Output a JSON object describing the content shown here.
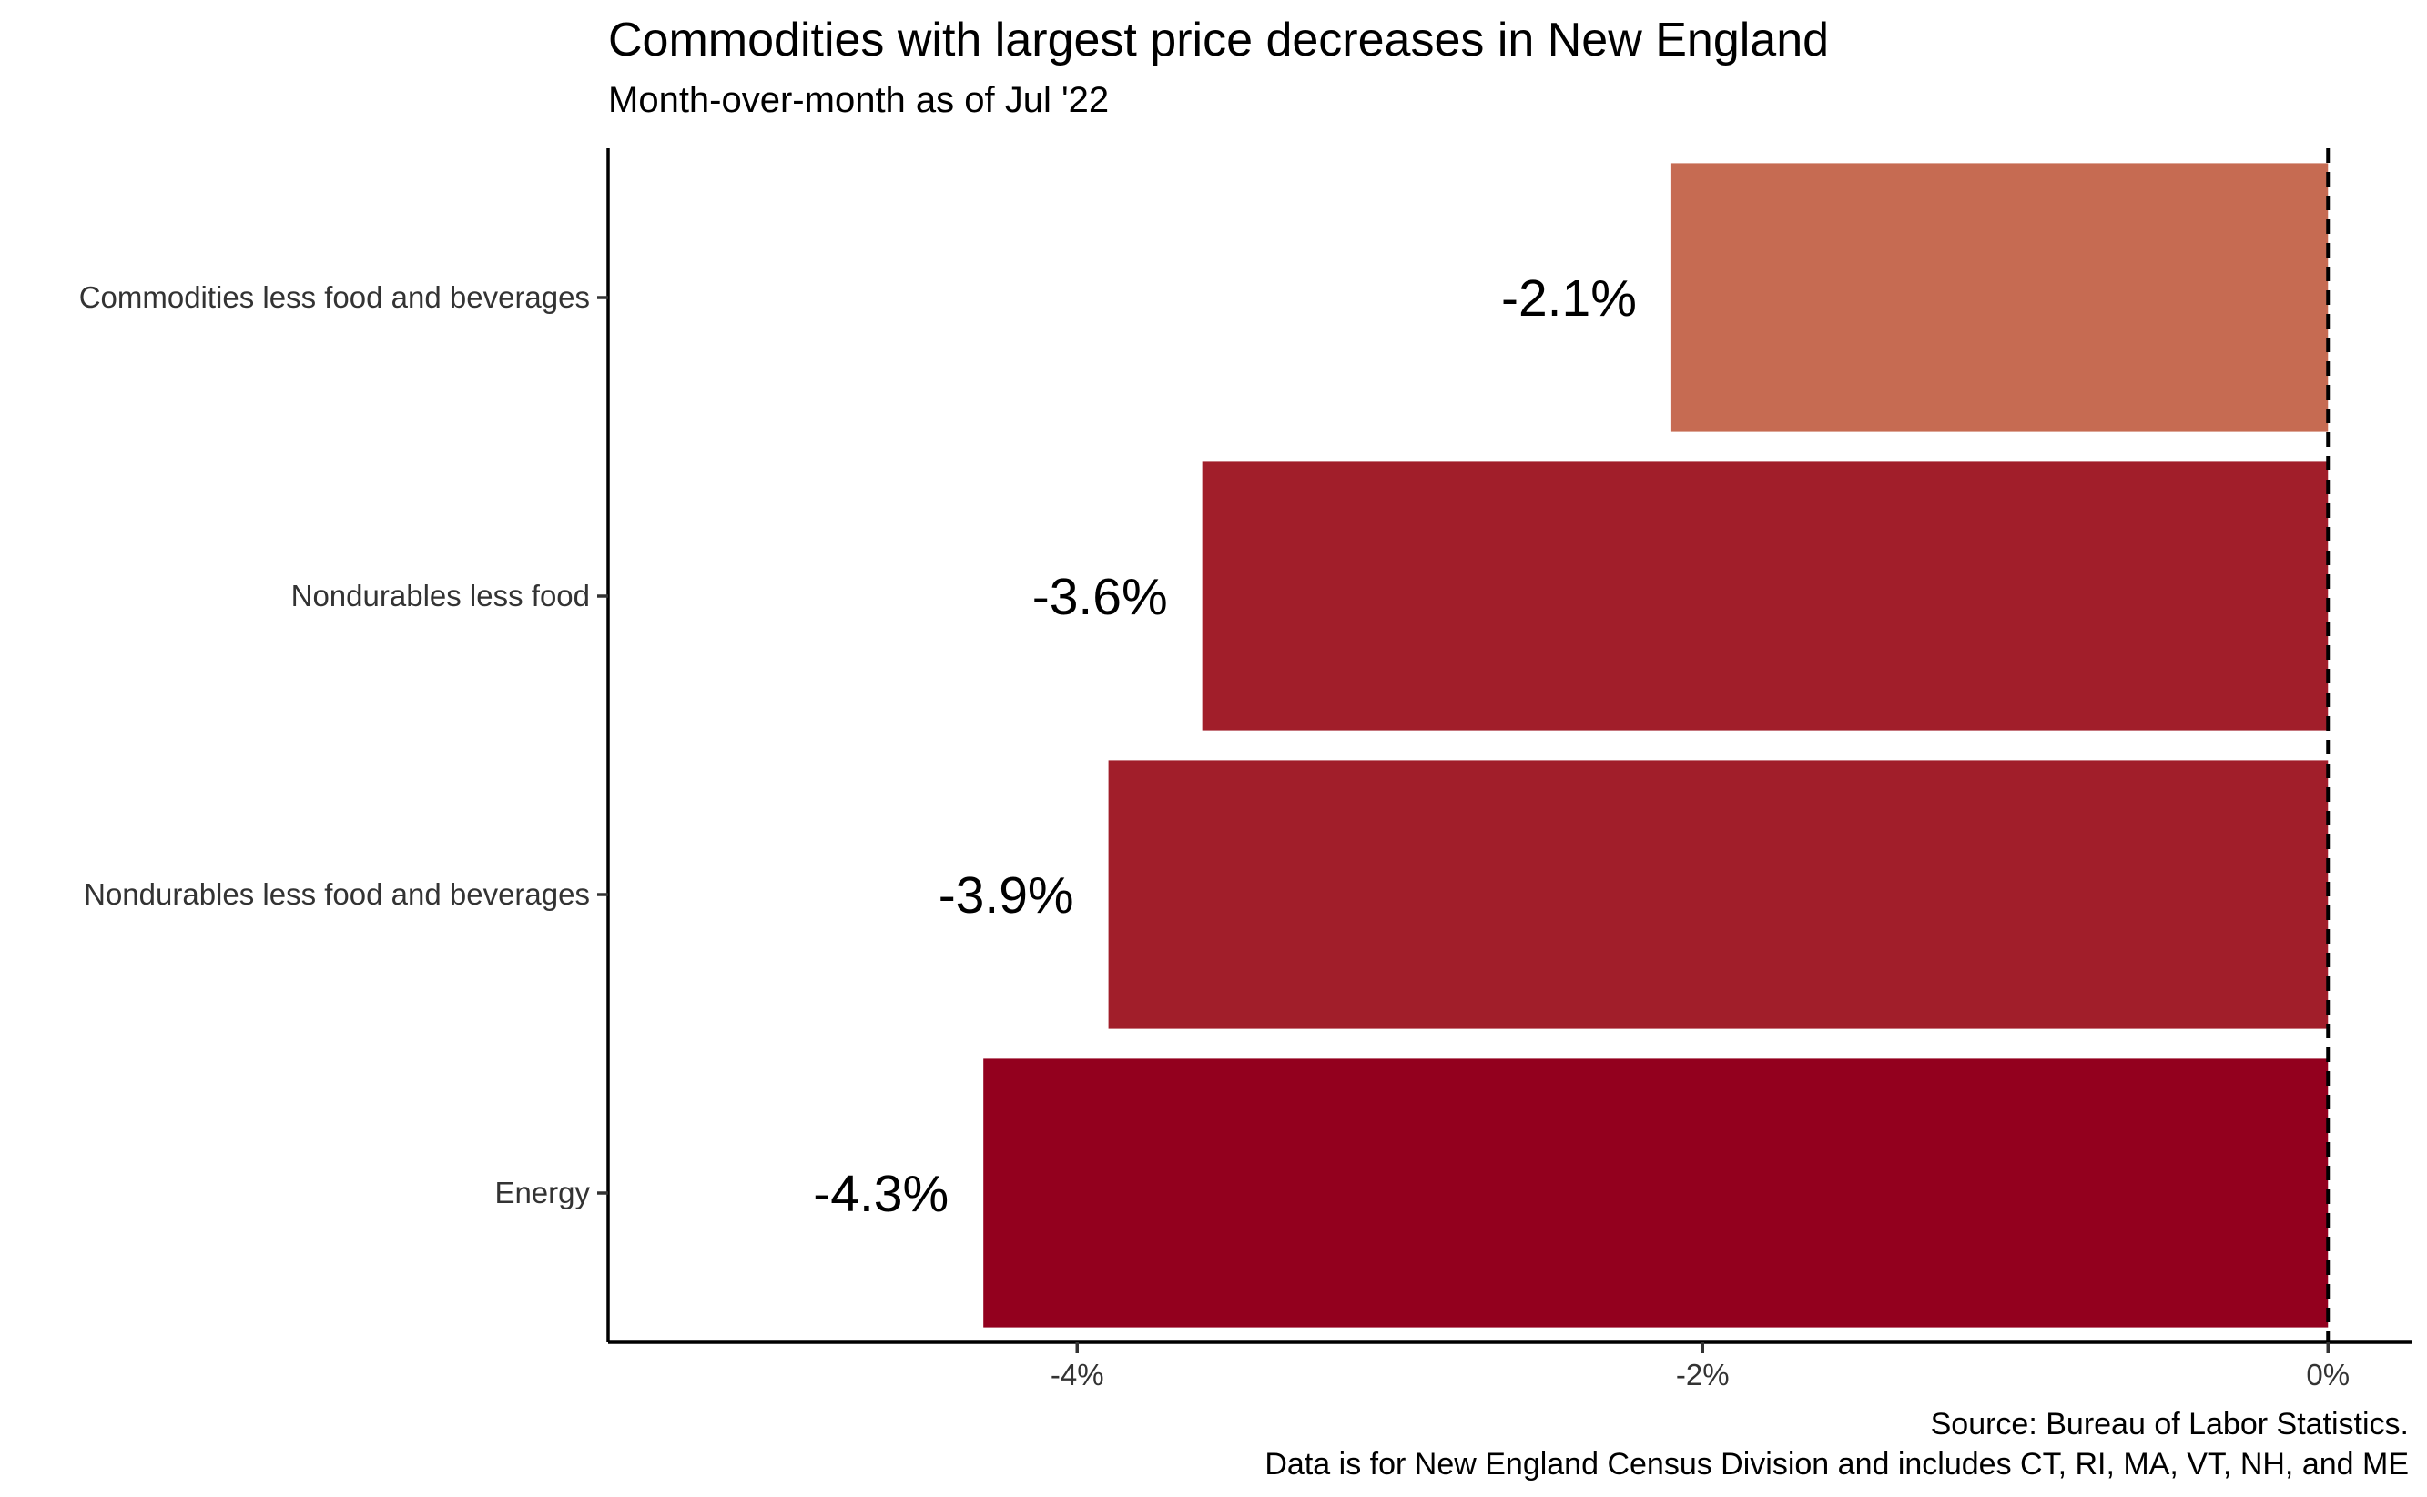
{
  "title": "Commodities with largest price decreases in New England",
  "subtitle": "Month-over-month as of Jul '22",
  "caption": {
    "line1": "Source: Bureau of Labor Statistics.",
    "line2": "Data is for New England Census Division and includes CT, RI, MA, VT, NH, and ME"
  },
  "chart_data": {
    "type": "bar",
    "orientation": "horizontal",
    "categories": [
      "Commodities less food and beverages",
      "Nondurables less food",
      "Nondurables less food and beverages",
      "Energy"
    ],
    "values": [
      -2.1,
      -3.6,
      -3.9,
      -4.3
    ],
    "labels": [
      "-2.1%",
      "-3.6%",
      "-3.9%",
      "-4.3%"
    ],
    "colors": [
      "#c66b52",
      "#a11e2a",
      "#a11e2a",
      "#93001e"
    ],
    "xlim": [
      -5.5,
      0.27
    ],
    "xticks": [
      -4,
      -2,
      0
    ],
    "xtick_labels": [
      "-4%",
      "-2%",
      "0%"
    ],
    "reference_line": {
      "x": 0,
      "style": "dashed"
    },
    "grid": false,
    "legend": "none"
  }
}
